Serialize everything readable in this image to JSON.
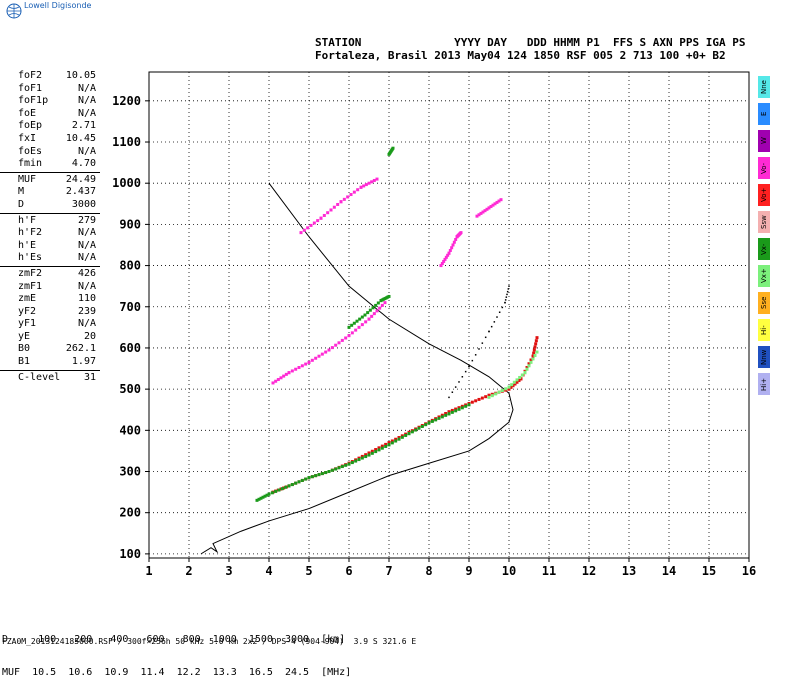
{
  "header": {
    "logo_label": "Lowell Digisonde",
    "line1": "STATION              YYYY DAY   DDD HHMM P1  FFS S AXN PPS IGA PS",
    "line2": "Fortaleza, Brasil 2013 May04 124 1850 RSF 005 2 713 100 +0+ B2"
  },
  "params": [
    {
      "label": "foF2",
      "value": "10.05"
    },
    {
      "label": "foF1",
      "value": "N/A"
    },
    {
      "label": "foF1p",
      "value": "N/A"
    },
    {
      "label": "foE",
      "value": "N/A"
    },
    {
      "label": "foEp",
      "value": "2.71"
    },
    {
      "label": "fxI",
      "value": "10.45"
    },
    {
      "label": "foEs",
      "value": "N/A"
    },
    {
      "label": "fmin",
      "value": "4.70"
    },
    {
      "label": "sep"
    },
    {
      "label": "MUF",
      "value": "24.49"
    },
    {
      "label": "M",
      "value": "2.437"
    },
    {
      "label": "D",
      "value": "3000"
    },
    {
      "label": "sep"
    },
    {
      "label": "h'F",
      "value": "279"
    },
    {
      "label": "h'F2",
      "value": "N/A"
    },
    {
      "label": "h'E",
      "value": "N/A"
    },
    {
      "label": "h'Es",
      "value": "N/A"
    },
    {
      "label": "sep"
    },
    {
      "label": "zmF2",
      "value": "426"
    },
    {
      "label": "zmF1",
      "value": "N/A"
    },
    {
      "label": "zmE",
      "value": "110"
    },
    {
      "label": "yF2",
      "value": "239"
    },
    {
      "label": "yF1",
      "value": "N/A"
    },
    {
      "label": "yE",
      "value": "20"
    },
    {
      "label": "B0",
      "value": "262.1"
    },
    {
      "label": "B1",
      "value": "1.97"
    },
    {
      "label": "sep"
    },
    {
      "label": "C-level",
      "value": "31"
    }
  ],
  "legend": [
    {
      "label": "Nne",
      "color": "#55e8e8"
    },
    {
      "label": "E",
      "color": "#2a8cff"
    },
    {
      "label": "W",
      "color": "#a000b0"
    },
    {
      "label": "Vo-",
      "color": "#ff2ad4"
    },
    {
      "label": "Vo+",
      "color": "#ff2020"
    },
    {
      "label": "Ssw",
      "color": "#f4b0b0"
    },
    {
      "label": "Vx-",
      "color": "#1a9a1a"
    },
    {
      "label": "Vx+",
      "color": "#7cf07c"
    },
    {
      "label": "Sse",
      "color": "#ffb020"
    },
    {
      "label": "Hi-",
      "color": "#ffff40"
    },
    {
      "label": "Nnw",
      "color": "#2050c0"
    },
    {
      "label": "Hi+",
      "color": "#b0b0f0"
    }
  ],
  "bottom": {
    "line1": "D     100   200   400   600   800  1000  1500  3000  [km]",
    "line2": "MUF  10.5  10.6  10.9  11.4  12.2  13.3  16.5  24.5  [MHz]"
  },
  "footer": "FZA0M_2013124185000.RSF / 300f×256h 50 kHz 5.0 km 2x2 / DPS-4 (904-904)  3.9 S 321.6 E",
  "chart_data": {
    "type": "scatter",
    "xlim": [
      1,
      16
    ],
    "ylim": [
      90,
      1270
    ],
    "x_ticks": [
      1,
      2,
      3,
      4,
      5,
      6,
      7,
      8,
      9,
      10,
      11,
      12,
      13,
      14,
      15,
      16
    ],
    "y_ticks": [
      100,
      200,
      300,
      400,
      500,
      600,
      700,
      800,
      900,
      1000,
      1100,
      1200
    ],
    "grid": true,
    "series": [
      {
        "color": "#e01010",
        "points": [
          [
            4.1,
            250
          ],
          [
            4.5,
            265
          ],
          [
            5,
            285
          ],
          [
            5.5,
            300
          ],
          [
            6,
            320
          ],
          [
            6.5,
            345
          ],
          [
            7,
            370
          ],
          [
            7.5,
            395
          ],
          [
            8,
            420
          ],
          [
            8.5,
            445
          ],
          [
            9,
            465
          ],
          [
            9.5,
            485
          ],
          [
            10,
            500
          ],
          [
            10.3,
            525
          ],
          [
            10.6,
            580
          ],
          [
            10.7,
            625
          ]
        ]
      },
      {
        "color": "#1a9a1a",
        "points": [
          [
            3.7,
            230
          ],
          [
            4,
            245
          ],
          [
            4.5,
            265
          ],
          [
            5,
            285
          ],
          [
            5.5,
            300
          ],
          [
            6,
            318
          ],
          [
            6.5,
            340
          ],
          [
            7,
            365
          ],
          [
            7.5,
            392
          ],
          [
            8,
            418
          ],
          [
            8.5,
            440
          ],
          [
            9,
            462
          ]
        ]
      },
      {
        "color": "#7cf07c",
        "points": [
          [
            9.5,
            480
          ],
          [
            10,
            505
          ],
          [
            10.4,
            540
          ],
          [
            10.7,
            590
          ]
        ]
      },
      {
        "color": "#ff2ad4",
        "points": [
          [
            4.1,
            515
          ],
          [
            4.5,
            540
          ],
          [
            5,
            565
          ],
          [
            5.5,
            595
          ],
          [
            6,
            630
          ],
          [
            6.5,
            670
          ],
          [
            6.9,
            710
          ]
        ]
      },
      {
        "color": "#1a9a1a",
        "points": [
          [
            6,
            650
          ],
          [
            6.4,
            680
          ],
          [
            6.8,
            715
          ],
          [
            7,
            725
          ]
        ]
      },
      {
        "color": "#ff2ad4",
        "points": [
          [
            4.8,
            880
          ],
          [
            5.3,
            915
          ],
          [
            5.8,
            955
          ],
          [
            6.3,
            990
          ],
          [
            6.7,
            1010
          ]
        ]
      },
      {
        "color": "#ff2ad4",
        "points": [
          [
            8.3,
            800
          ],
          [
            8.5,
            830
          ],
          [
            8.7,
            870
          ],
          [
            8.8,
            880
          ]
        ]
      },
      {
        "color": "#ff2ad4",
        "points": [
          [
            9.2,
            920
          ],
          [
            9.5,
            940
          ],
          [
            9.8,
            960
          ]
        ]
      },
      {
        "color": "#1a9a1a",
        "points": [
          [
            7,
            1070
          ],
          [
            7.1,
            1085
          ]
        ]
      },
      {
        "color": "#000000",
        "points": [
          [
            8.5,
            480
          ],
          [
            9,
            555
          ],
          [
            9.5,
            640
          ],
          [
            9.9,
            710
          ],
          [
            10,
            750
          ]
        ]
      }
    ],
    "profile_line": [
      [
        4,
        1000
      ],
      [
        5,
        870
      ],
      [
        6,
        750
      ],
      [
        7,
        670
      ],
      [
        8,
        610
      ],
      [
        8.8,
        570
      ],
      [
        9.5,
        530
      ],
      [
        10,
        490
      ],
      [
        10.1,
        450
      ],
      [
        10,
        420
      ],
      [
        9.5,
        380
      ],
      [
        9,
        350
      ],
      [
        8,
        320
      ],
      [
        7,
        290
      ],
      [
        6,
        250
      ],
      [
        5,
        210
      ],
      [
        4,
        180
      ],
      [
        3.3,
        155
      ],
      [
        2.6,
        125
      ],
      [
        2.7,
        105
      ],
      [
        2.55,
        115
      ],
      [
        2.3,
        100
      ]
    ]
  }
}
